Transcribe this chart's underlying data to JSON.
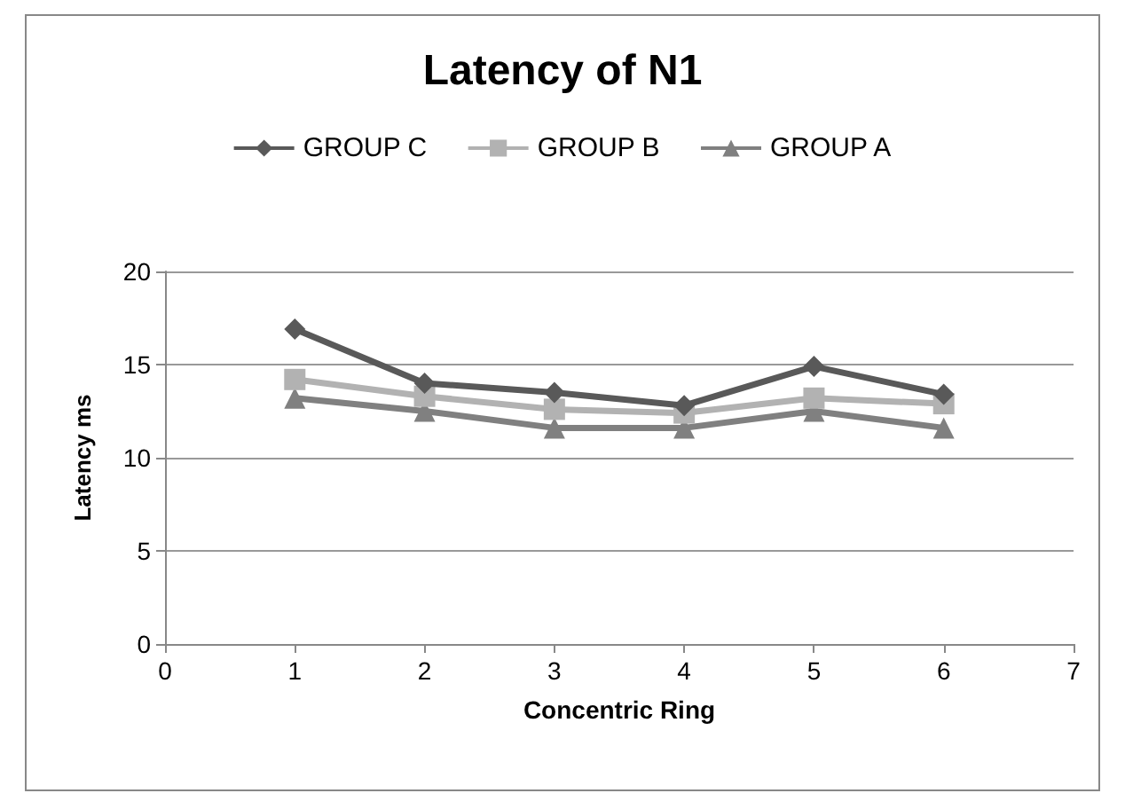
{
  "chart_data": {
    "type": "line",
    "title": "Latency of N1",
    "xlabel": "Concentric Ring",
    "ylabel": "Latency ms",
    "x": [
      1,
      2,
      3,
      4,
      5,
      6
    ],
    "series": [
      {
        "name": "GROUP C",
        "color": "#595959",
        "marker": "diamond",
        "values": [
          16.9,
          14.0,
          13.5,
          12.8,
          14.9,
          13.4
        ]
      },
      {
        "name": "GROUP B",
        "color": "#b2b2b2",
        "marker": "square",
        "values": [
          14.2,
          13.3,
          12.6,
          12.4,
          13.2,
          12.9
        ]
      },
      {
        "name": "GROUP A",
        "color": "#808080",
        "marker": "triangle",
        "values": [
          13.2,
          12.5,
          11.6,
          11.6,
          12.5,
          11.6
        ]
      }
    ],
    "xlim": [
      0,
      7
    ],
    "xticks": [
      0,
      1,
      2,
      3,
      4,
      5,
      6,
      7
    ],
    "ylim": [
      0,
      20
    ],
    "yticks": [
      0,
      5,
      10,
      15,
      20
    ],
    "grid": "y",
    "legend": "top"
  }
}
